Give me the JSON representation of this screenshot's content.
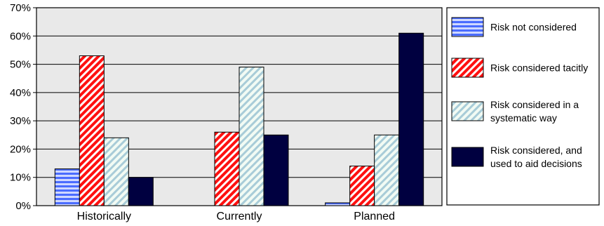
{
  "chart_data": {
    "type": "bar",
    "title": "",
    "xlabel": "",
    "ylabel": "",
    "categories": [
      "Historically",
      "Currently",
      "Planned"
    ],
    "ylim": [
      0,
      70
    ],
    "yticks": [
      0,
      10,
      20,
      30,
      40,
      50,
      60,
      70
    ],
    "ytick_labels": [
      "0%",
      "10%",
      "20%",
      "30%",
      "40%",
      "50%",
      "60%",
      "70%"
    ],
    "grid": true,
    "legend_position": "right",
    "series": [
      {
        "name": "Risk not considered",
        "legend_lines": [
          "Risk not considered"
        ],
        "values": [
          13,
          0,
          1
        ],
        "color": "#4a6cff",
        "pattern": "horizontal-stripes"
      },
      {
        "name": "Risk considered tacitly",
        "legend_lines": [
          "Risk considered tacitly"
        ],
        "values": [
          53,
          26,
          14
        ],
        "color": "#ff1010",
        "pattern": "diagonal-stripes"
      },
      {
        "name": "Risk considered in a systematic way",
        "legend_lines": [
          "Risk considered in a",
          "systematic way"
        ],
        "values": [
          24,
          49,
          25
        ],
        "color": "#a8ccd8",
        "pattern": "light-diagonal-stripes"
      },
      {
        "name": "Risk considered, and used to aid decisions",
        "legend_lines": [
          "Risk considered, and",
          "used to aid decisions"
        ],
        "values": [
          10,
          25,
          61
        ],
        "color": "#000040",
        "pattern": "solid"
      }
    ],
    "colors": {
      "plot_background": "#e9e9e9",
      "gridline": "#000000"
    }
  }
}
